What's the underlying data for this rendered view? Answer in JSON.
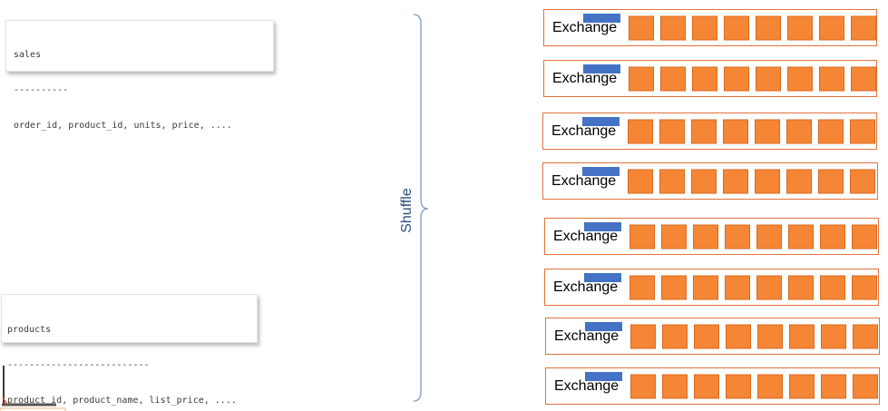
{
  "tables": {
    "sales": {
      "name": "sales",
      "separator": "----------",
      "columns": "order_id, product_id, units, price, ...."
    },
    "products": {
      "name": "products",
      "separator": "--------------------------",
      "columns": "product_id, product_name, list_price, ...."
    }
  },
  "shuffle": {
    "label": "Shuffle"
  },
  "exchanges": [
    {
      "label": "Exchange",
      "partitions": 8
    },
    {
      "label": "Exchange",
      "partitions": 8
    },
    {
      "label": "Exchange",
      "partitions": 8
    },
    {
      "label": "Exchange",
      "partitions": 8
    },
    {
      "label": "Exchange",
      "partitions": 8
    },
    {
      "label": "Exchange",
      "partitions": 8
    },
    {
      "label": "Exchange",
      "partitions": 8
    },
    {
      "label": "Exchange",
      "partitions": 8
    }
  ],
  "colors": {
    "partition_fill": "#f58636",
    "exchange_border": "#e2733b",
    "exchange_tag": "#4472c4",
    "shuffle_text": "#2f4f7f",
    "brace": "#7f9bbf"
  }
}
